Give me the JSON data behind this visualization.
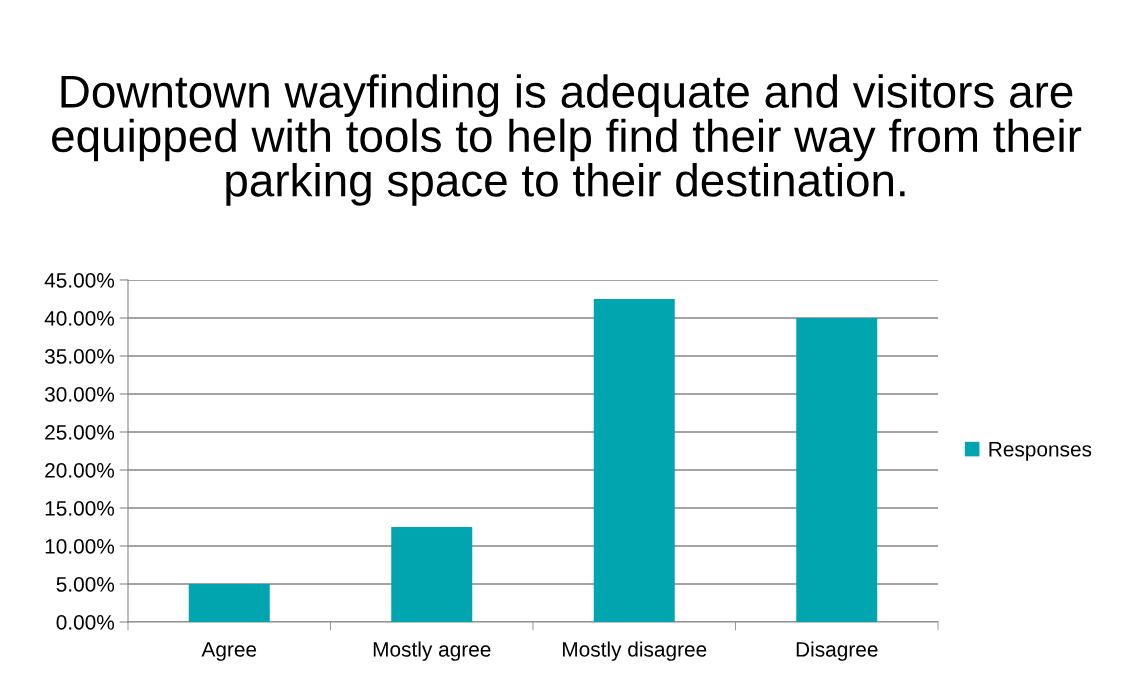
{
  "chart_data": {
    "type": "bar",
    "title": "Downtown wayfinding is adequate and visitors are equipped with tools to help find their way from their parking space to their destination.",
    "categories": [
      "Agree",
      "Mostly agree",
      "Mostly disagree",
      "Disagree"
    ],
    "series": [
      {
        "name": "Responses",
        "color": "#00a5b0",
        "values": [
          5,
          12.5,
          42.5,
          40
        ]
      }
    ],
    "ylim": [
      0,
      45
    ],
    "yticks": [
      {
        "value": 0,
        "label": "0.00%"
      },
      {
        "value": 5,
        "label": "5.00%"
      },
      {
        "value": 10,
        "label": "10.00%"
      },
      {
        "value": 15,
        "label": "15.00%"
      },
      {
        "value": 20,
        "label": "20.00%"
      },
      {
        "value": 25,
        "label": "25.00%"
      },
      {
        "value": 30,
        "label": "30.00%"
      },
      {
        "value": 35,
        "label": "35.00%"
      },
      {
        "value": 40,
        "label": "40.00%"
      },
      {
        "value": 45,
        "label": "45.00%"
      }
    ],
    "grid": "y",
    "legend": "right"
  }
}
